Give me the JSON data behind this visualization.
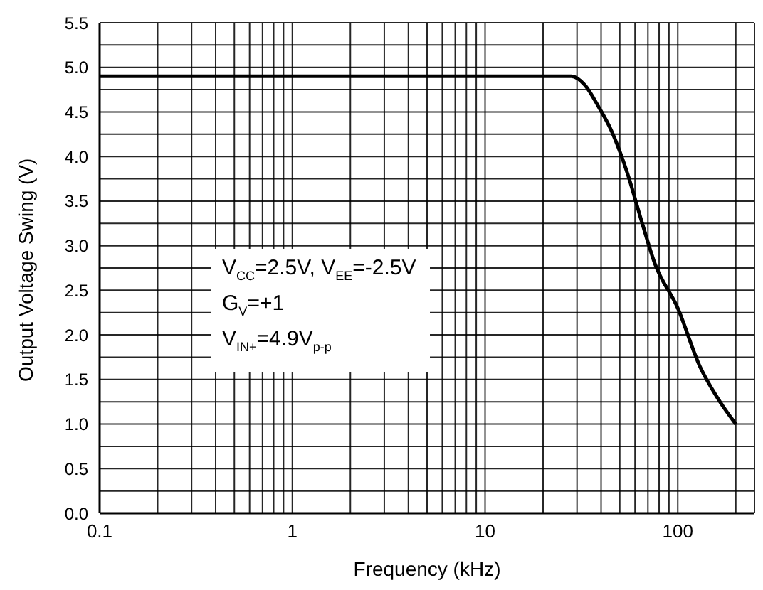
{
  "chart_data": {
    "type": "line",
    "xlabel": "Frequency (kHz)",
    "ylabel": "Output Voltage Swing (V)",
    "annotations": [
      "V$_{CC}$=2.5V, V$_{EE}$=-2.5V",
      "G$_{V}$=+1",
      "V$_{IN+}$=4.9V$_{p-p}$"
    ],
    "x": [
      0.1,
      28,
      33,
      39,
      45,
      55,
      65,
      76,
      100,
      130,
      160,
      200
    ],
    "series": [
      {
        "color": "#000000",
        "values": [
          4.9,
          4.9,
          4.8,
          4.55,
          4.3,
          3.8,
          3.27,
          2.8,
          2.3,
          1.65,
          1.3,
          1.0
        ]
      }
    ],
    "log": "x",
    "grid": true,
    "legend": false,
    "marker": "none",
    "line_style": "solid",
    "xlim": [
      0.1,
      250
    ],
    "xticks": [
      0.1,
      {
        "value": 0.2,
        "label": null
      },
      {
        "value": 0.3,
        "label": null
      },
      {
        "value": 0.4,
        "label": null
      },
      {
        "value": 0.5,
        "label": null
      },
      {
        "value": 0.6,
        "label": null
      },
      {
        "value": 0.7,
        "label": null
      },
      {
        "value": 0.8,
        "label": null
      },
      {
        "value": 0.9,
        "label": null
      },
      1,
      {
        "value": 2,
        "label": null
      },
      {
        "value": 3,
        "label": null
      },
      {
        "value": 4,
        "label": null
      },
      {
        "value": 5,
        "label": null
      },
      {
        "value": 6,
        "label": null
      },
      {
        "value": 7,
        "label": null
      },
      {
        "value": 8,
        "label": null
      },
      {
        "value": 9,
        "label": null
      },
      10,
      {
        "value": 20,
        "label": null
      },
      {
        "value": 30,
        "label": null
      },
      {
        "value": 40,
        "label": null
      },
      {
        "value": 50,
        "label": null
      },
      {
        "value": 60,
        "label": null
      },
      {
        "value": 70,
        "label": null
      },
      {
        "value": 80,
        "label": null
      },
      {
        "value": 90,
        "label": null
      },
      100,
      {
        "value": 200,
        "label": null
      }
    ],
    "ylim": [
      0,
      5.5
    ],
    "yticks": [
      {
        "value": 0,
        "label": "0.0"
      },
      {
        "value": 0.25,
        "label": null
      },
      {
        "value": 0.5,
        "label": "0.5"
      },
      {
        "value": 0.75,
        "label": null
      },
      {
        "value": 1,
        "label": "1.0"
      },
      {
        "value": 1.25,
        "label": null
      },
      {
        "value": 1.5,
        "label": "1.5"
      },
      {
        "value": 1.75,
        "label": null
      },
      {
        "value": 2,
        "label": "2.0"
      },
      {
        "value": 2.25,
        "label": null
      },
      {
        "value": 2.5,
        "label": "2.5"
      },
      {
        "value": 2.75,
        "label": null
      },
      {
        "value": 3,
        "label": "3.0"
      },
      {
        "value": 3.25,
        "label": null
      },
      {
        "value": 3.5,
        "label": "3.5"
      },
      {
        "value": 3.75,
        "label": null
      },
      {
        "value": 4,
        "label": "4.0"
      },
      {
        "value": 4.25,
        "label": null
      },
      {
        "value": 4.5,
        "label": "4.5"
      },
      {
        "value": 4.75,
        "label": null
      },
      {
        "value": 5,
        "label": "5.0"
      },
      {
        "value": 5.25,
        "label": null
      },
      {
        "value": 5.5,
        "label": "5.5"
      }
    ]
  }
}
